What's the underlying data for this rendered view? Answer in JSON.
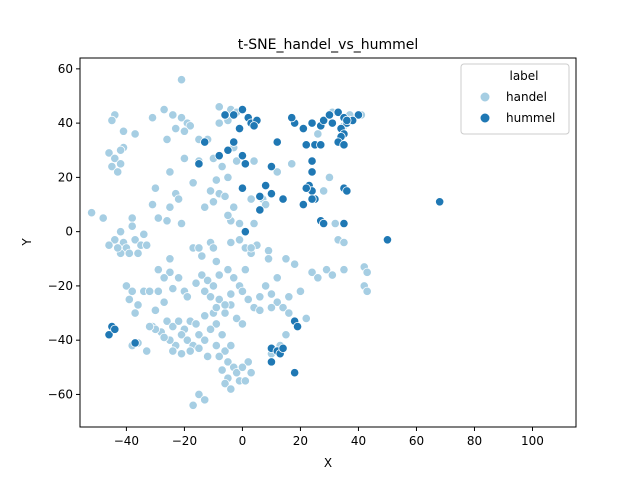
{
  "chart_data": {
    "type": "scatter",
    "title": "t-SNE_handel_vs_hummel",
    "xlabel": "X",
    "ylabel": "Y",
    "xlim": [
      -56,
      115
    ],
    "ylim": [
      -72,
      64
    ],
    "xticks": [
      -40,
      -20,
      0,
      20,
      40,
      60,
      80,
      100
    ],
    "yticks": [
      -60,
      -40,
      -20,
      0,
      20,
      40,
      60
    ],
    "xtick_labels": [
      "−40",
      "−20",
      "0",
      "20",
      "40",
      "60",
      "80",
      "100"
    ],
    "ytick_labels": [
      "−60",
      "−40",
      "−20",
      "0",
      "20",
      "40",
      "60"
    ],
    "grid": false,
    "legend": {
      "title": "label",
      "placement": "top-right",
      "entries": [
        {
          "name": "handel",
          "color": "#a6cee3"
        },
        {
          "name": "hummel",
          "color": "#1f78b4"
        }
      ]
    },
    "series": [
      {
        "name": "handel",
        "color": "#a6cee3",
        "points": [
          [
            -21,
            56
          ],
          [
            -27,
            45
          ],
          [
            -24,
            43
          ],
          [
            -21,
            42
          ],
          [
            -19,
            40
          ],
          [
            -23,
            38
          ],
          [
            -18,
            39
          ],
          [
            -20,
            37
          ],
          [
            -31,
            42
          ],
          [
            -26,
            34
          ],
          [
            -15,
            34
          ],
          [
            -8,
            46
          ],
          [
            -4,
            45
          ],
          [
            -2,
            44
          ],
          [
            -6,
            43
          ],
          [
            -5,
            41
          ],
          [
            -8,
            40
          ],
          [
            -44,
            43
          ],
          [
            -45,
            41
          ],
          [
            -41,
            37
          ],
          [
            -41,
            31
          ],
          [
            -42,
            30
          ],
          [
            -46,
            29
          ],
          [
            -44,
            27
          ],
          [
            -42,
            25
          ],
          [
            -45,
            24
          ],
          [
            -43,
            22
          ],
          [
            -37,
            36
          ],
          [
            -15,
            26
          ],
          [
            -10,
            27
          ],
          [
            -7,
            24
          ],
          [
            -5,
            20
          ],
          [
            -9,
            19
          ],
          [
            -11,
            15
          ],
          [
            -17,
            18
          ],
          [
            -8,
            14
          ],
          [
            -6,
            13
          ],
          [
            -10,
            11
          ],
          [
            -13,
            9
          ],
          [
            -3,
            9
          ],
          [
            -4,
            4
          ],
          [
            -5,
            6
          ],
          [
            -1,
            3
          ],
          [
            4,
            3
          ],
          [
            7,
            12
          ],
          [
            8,
            10
          ],
          [
            3,
            12
          ],
          [
            -30,
            16
          ],
          [
            -31,
            10
          ],
          [
            -25,
            9
          ],
          [
            -23,
            14
          ],
          [
            -22,
            12
          ],
          [
            -29,
            5
          ],
          [
            -26,
            4
          ],
          [
            -21,
            3
          ],
          [
            -38,
            5
          ],
          [
            -38,
            2
          ],
          [
            -52,
            7
          ],
          [
            -48,
            5
          ],
          [
            -42,
            0
          ],
          [
            -44,
            -3
          ],
          [
            -46,
            -5
          ],
          [
            -41,
            -4
          ],
          [
            -40,
            -6
          ],
          [
            -37,
            -3
          ],
          [
            -35,
            -5
          ],
          [
            -33,
            -5
          ],
          [
            -34,
            -1
          ],
          [
            -39,
            -8
          ],
          [
            -36,
            -8
          ],
          [
            -42,
            -8
          ],
          [
            -43,
            -6
          ],
          [
            -17,
            -6
          ],
          [
            -15,
            -6
          ],
          [
            -14,
            -9
          ],
          [
            -11,
            -4
          ],
          [
            -10,
            -6
          ],
          [
            -9,
            -11
          ],
          [
            -4,
            -4
          ],
          [
            -1,
            -3
          ],
          [
            1,
            -6
          ],
          [
            3,
            -8
          ],
          [
            5,
            -5
          ],
          [
            9,
            -7
          ],
          [
            3,
            -6
          ],
          [
            -25,
            -10
          ],
          [
            -25,
            -15
          ],
          [
            -29,
            -14
          ],
          [
            -27,
            -17
          ],
          [
            -22,
            -17
          ],
          [
            -20,
            -22
          ],
          [
            -19,
            -24
          ],
          [
            -16,
            -19
          ],
          [
            -14,
            -16
          ],
          [
            -12,
            -18
          ],
          [
            -10,
            -20
          ],
          [
            -8,
            -16
          ],
          [
            -5,
            -14
          ],
          [
            -3,
            -17
          ],
          [
            -1,
            -20
          ],
          [
            1,
            -14
          ],
          [
            -8,
            -25
          ],
          [
            -4,
            -27
          ],
          [
            -6,
            -30
          ],
          [
            -2,
            -32
          ],
          [
            0,
            -34
          ],
          [
            -40,
            -20
          ],
          [
            -38,
            -22
          ],
          [
            -39,
            -25
          ],
          [
            -36,
            -27
          ],
          [
            -37,
            -30
          ],
          [
            -34,
            -22
          ],
          [
            -32,
            -22
          ],
          [
            -29,
            -22
          ],
          [
            -24,
            -21
          ],
          [
            -31,
            -35
          ],
          [
            -28,
            -37
          ],
          [
            -26,
            -33
          ],
          [
            -24,
            -35
          ],
          [
            -22,
            -33
          ],
          [
            -20,
            -36
          ],
          [
            -18,
            -33
          ],
          [
            -16,
            -34
          ],
          [
            -21,
            -38
          ],
          [
            -19,
            -40
          ],
          [
            -23,
            -42
          ],
          [
            -25,
            -40
          ],
          [
            -27,
            -39
          ],
          [
            -30,
            -36
          ],
          [
            -32,
            -35
          ],
          [
            -17,
            -42
          ],
          [
            -15,
            -38
          ],
          [
            -13,
            -40
          ],
          [
            -24,
            -44
          ],
          [
            -21,
            -45
          ],
          [
            -18,
            -44
          ],
          [
            -15,
            -43
          ],
          [
            -12,
            -46
          ],
          [
            -10,
            -30
          ],
          [
            -9,
            -34
          ],
          [
            -11,
            -36
          ],
          [
            -13,
            -31
          ],
          [
            -7,
            -38
          ],
          [
            -9,
            -42
          ],
          [
            -6,
            -44
          ],
          [
            -8,
            -46
          ],
          [
            -4,
            -42
          ],
          [
            -5,
            -48
          ],
          [
            -3,
            -50
          ],
          [
            -7,
            -51
          ],
          [
            -5,
            -54
          ],
          [
            -2,
            -52
          ],
          [
            -6,
            -56
          ],
          [
            -1,
            -55
          ],
          [
            -4,
            -58
          ],
          [
            1,
            -55
          ],
          [
            3,
            -52
          ],
          [
            2,
            -48
          ],
          [
            0,
            -50
          ],
          [
            -17,
            -64
          ],
          [
            -15,
            -60
          ],
          [
            -13,
            -62
          ],
          [
            -13,
            -22
          ],
          [
            -11,
            -24
          ],
          [
            -9,
            -28
          ],
          [
            -6,
            -27
          ],
          [
            -4,
            -23
          ],
          [
            0,
            -22
          ],
          [
            2,
            -25
          ],
          [
            4,
            -28
          ],
          [
            6,
            -24
          ],
          [
            8,
            -20
          ],
          [
            10,
            -23
          ],
          [
            12,
            -26
          ],
          [
            6,
            -29
          ],
          [
            10,
            -28
          ],
          [
            16,
            -24
          ],
          [
            -38,
            -42
          ],
          [
            -36,
            -41
          ],
          [
            -33,
            -44
          ],
          [
            15,
            -10
          ],
          [
            18,
            -12
          ],
          [
            12,
            -17
          ],
          [
            20,
            -22
          ],
          [
            14,
            -28
          ],
          [
            16,
            -30
          ],
          [
            24,
            -15
          ],
          [
            26,
            -17
          ],
          [
            29,
            -14
          ],
          [
            31,
            -16
          ],
          [
            35,
            -14
          ],
          [
            42,
            -13
          ],
          [
            43,
            -15
          ],
          [
            42,
            -20
          ],
          [
            43,
            -22
          ],
          [
            28,
            15
          ],
          [
            30,
            20
          ],
          [
            32,
            3
          ],
          [
            33,
            -3
          ],
          [
            35,
            -4
          ],
          [
            26,
            36
          ],
          [
            31,
            44
          ],
          [
            33,
            44
          ],
          [
            37,
            43
          ],
          [
            41,
            43
          ],
          [
            36,
            41
          ],
          [
            35,
            39
          ],
          [
            22,
            -32
          ],
          [
            15,
            -38
          ],
          [
            10,
            -45
          ],
          [
            13,
            -42
          ],
          [
            -20,
            27
          ],
          [
            -25,
            22
          ],
          [
            -12,
            34
          ],
          [
            -3,
            31
          ],
          [
            -2,
            26
          ],
          [
            4,
            26
          ],
          [
            12,
            22
          ],
          [
            17,
            25
          ],
          [
            9,
            -10
          ],
          [
            -30,
            -29
          ],
          [
            -27,
            -26
          ]
        ]
      },
      {
        "name": "hummel",
        "color": "#1f78b4",
        "points": [
          [
            0,
            45
          ],
          [
            -3,
            43
          ],
          [
            2,
            42
          ],
          [
            3,
            40
          ],
          [
            5,
            41
          ],
          [
            4,
            39
          ],
          [
            -1,
            38
          ],
          [
            -6,
            43
          ],
          [
            -3,
            33
          ],
          [
            -5,
            30
          ],
          [
            -8,
            28
          ],
          [
            -13,
            33
          ],
          [
            -15,
            25
          ],
          [
            0,
            28
          ],
          [
            1,
            25
          ],
          [
            0,
            16
          ],
          [
            1,
            0
          ],
          [
            6,
            8
          ],
          [
            6,
            13
          ],
          [
            8,
            17
          ],
          [
            10,
            14
          ],
          [
            14,
            12
          ],
          [
            10,
            24
          ],
          [
            12,
            33
          ],
          [
            18,
            40
          ],
          [
            21,
            38
          ],
          [
            17,
            42
          ],
          [
            24,
            40
          ],
          [
            27,
            39
          ],
          [
            28,
            41
          ],
          [
            30,
            43
          ],
          [
            31,
            40
          ],
          [
            33,
            44
          ],
          [
            35,
            42
          ],
          [
            36,
            40
          ],
          [
            34,
            38
          ],
          [
            37,
            41
          ],
          [
            40,
            43
          ],
          [
            38,
            41
          ],
          [
            35,
            36
          ],
          [
            34,
            35
          ],
          [
            33,
            33
          ],
          [
            35,
            32
          ],
          [
            36,
            41
          ],
          [
            22,
            32
          ],
          [
            25,
            32
          ],
          [
            27,
            32
          ],
          [
            24,
            26
          ],
          [
            24,
            22
          ],
          [
            23,
            17
          ],
          [
            24,
            15
          ],
          [
            25,
            12
          ],
          [
            24,
            12
          ],
          [
            21,
            10
          ],
          [
            22,
            16
          ],
          [
            27,
            4
          ],
          [
            28,
            3
          ],
          [
            35,
            16
          ],
          [
            36,
            15
          ],
          [
            35,
            3
          ],
          [
            50,
            -3
          ],
          [
            68,
            11
          ],
          [
            -45,
            -35
          ],
          [
            -46,
            -38
          ],
          [
            -44,
            -36
          ],
          [
            -37,
            -41
          ],
          [
            18,
            -33
          ],
          [
            19,
            -35
          ],
          [
            10,
            -43
          ],
          [
            12,
            -44
          ],
          [
            13,
            -45
          ],
          [
            10,
            -48
          ],
          [
            18,
            -52
          ],
          [
            14,
            -43
          ]
        ]
      }
    ]
  }
}
